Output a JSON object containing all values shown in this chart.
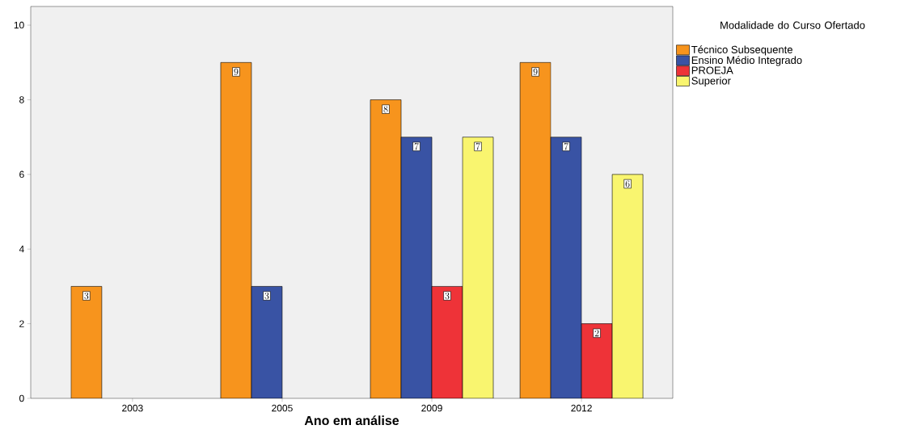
{
  "chart_data": {
    "type": "bar",
    "xlabel": "Ano em análise",
    "legend_title": "Modalidade do Curso Ofertado",
    "categories": [
      "2003",
      "2005",
      "2009",
      "2012"
    ],
    "series": [
      {
        "name": "Técnico Subsequente",
        "color": "#f7941d",
        "values": [
          3,
          9,
          8,
          9
        ]
      },
      {
        "name": "Ensino Médio Integrado",
        "color": "#3953a4",
        "values": [
          null,
          3,
          7,
          7
        ]
      },
      {
        "name": "PROEJA",
        "color": "#ee3338",
        "values": [
          null,
          null,
          3,
          2
        ]
      },
      {
        "name": "Superior",
        "color": "#f9f56f",
        "values": [
          null,
          null,
          7,
          6
        ]
      }
    ],
    "ylim": [
      0,
      10.5
    ],
    "yticks": [
      0,
      2,
      4,
      6,
      8,
      10
    ],
    "data_labels": true,
    "legend": "right",
    "grid": false
  }
}
